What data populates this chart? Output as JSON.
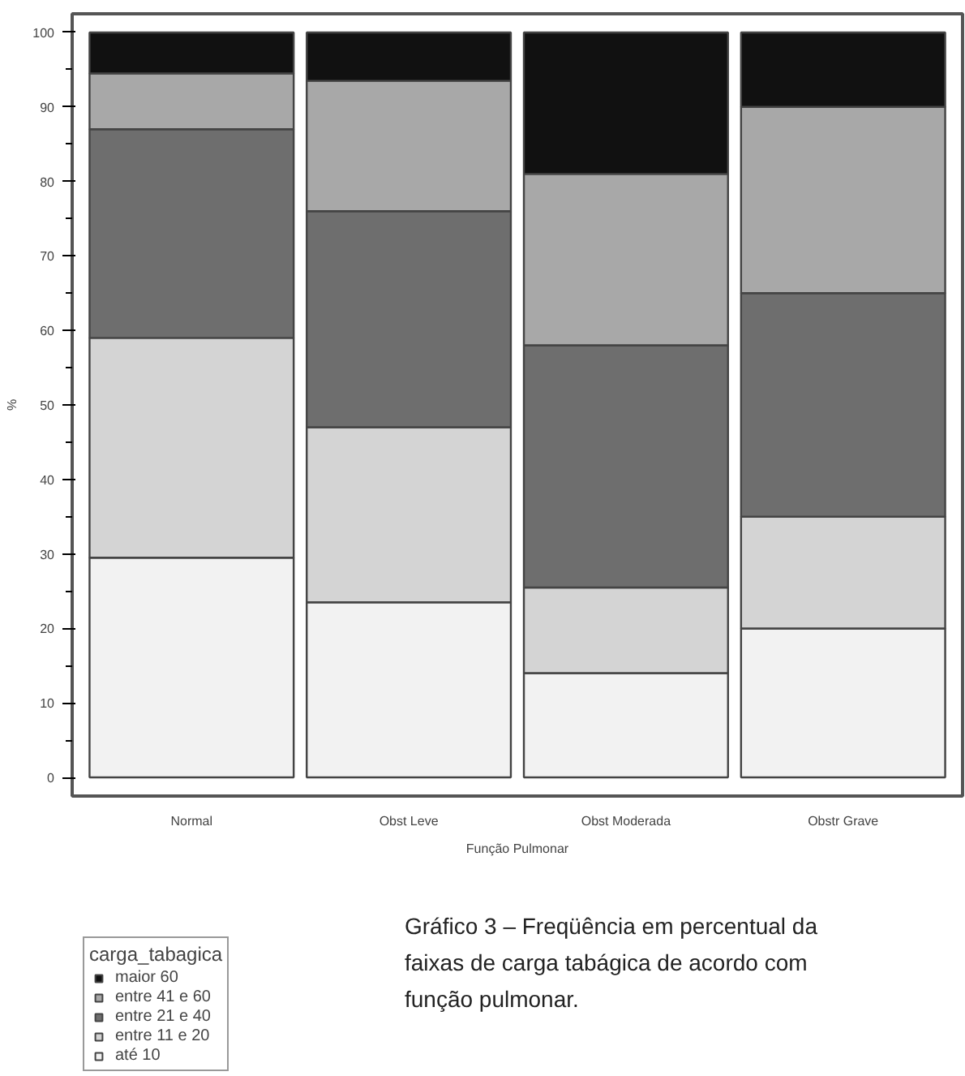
{
  "chart_data": {
    "type": "bar",
    "stacked": true,
    "xlabel": "Função Pulmonar",
    "ylabel": "%",
    "legend_title": "carga_tabagica",
    "legend": "bottom left",
    "categories": [
      "Normal",
      "Obst Leve",
      "Obst Moderada",
      "Obstr Grave"
    ],
    "series": [
      {
        "name": "até 10",
        "color": "#f2f2f2",
        "values": [
          29.5,
          23.5,
          14,
          20
        ]
      },
      {
        "name": "entre 11 e 20",
        "color": "#d4d4d4",
        "values": [
          29.5,
          23.5,
          11.5,
          15
        ]
      },
      {
        "name": "entre 21 e 40",
        "color": "#6e6e6e",
        "values": [
          28,
          29,
          32.5,
          30
        ]
      },
      {
        "name": "entre 41 e 60",
        "color": "#a8a8a8",
        "values": [
          7.5,
          17.5,
          23,
          25
        ]
      },
      {
        "name": "maior 60",
        "color": "#111111",
        "values": [
          5.5,
          6.5,
          19,
          10
        ]
      }
    ],
    "ylim": [
      -2.5,
      102.5
    ],
    "yticks": [
      0,
      10,
      20,
      30,
      40,
      50,
      60,
      70,
      80,
      90,
      100
    ],
    "grid": false,
    "annotations": [
      "Gráfico 3 – Freqüência em percentual da faixas de carga tabágica de acordo com função pulmonar."
    ]
  }
}
